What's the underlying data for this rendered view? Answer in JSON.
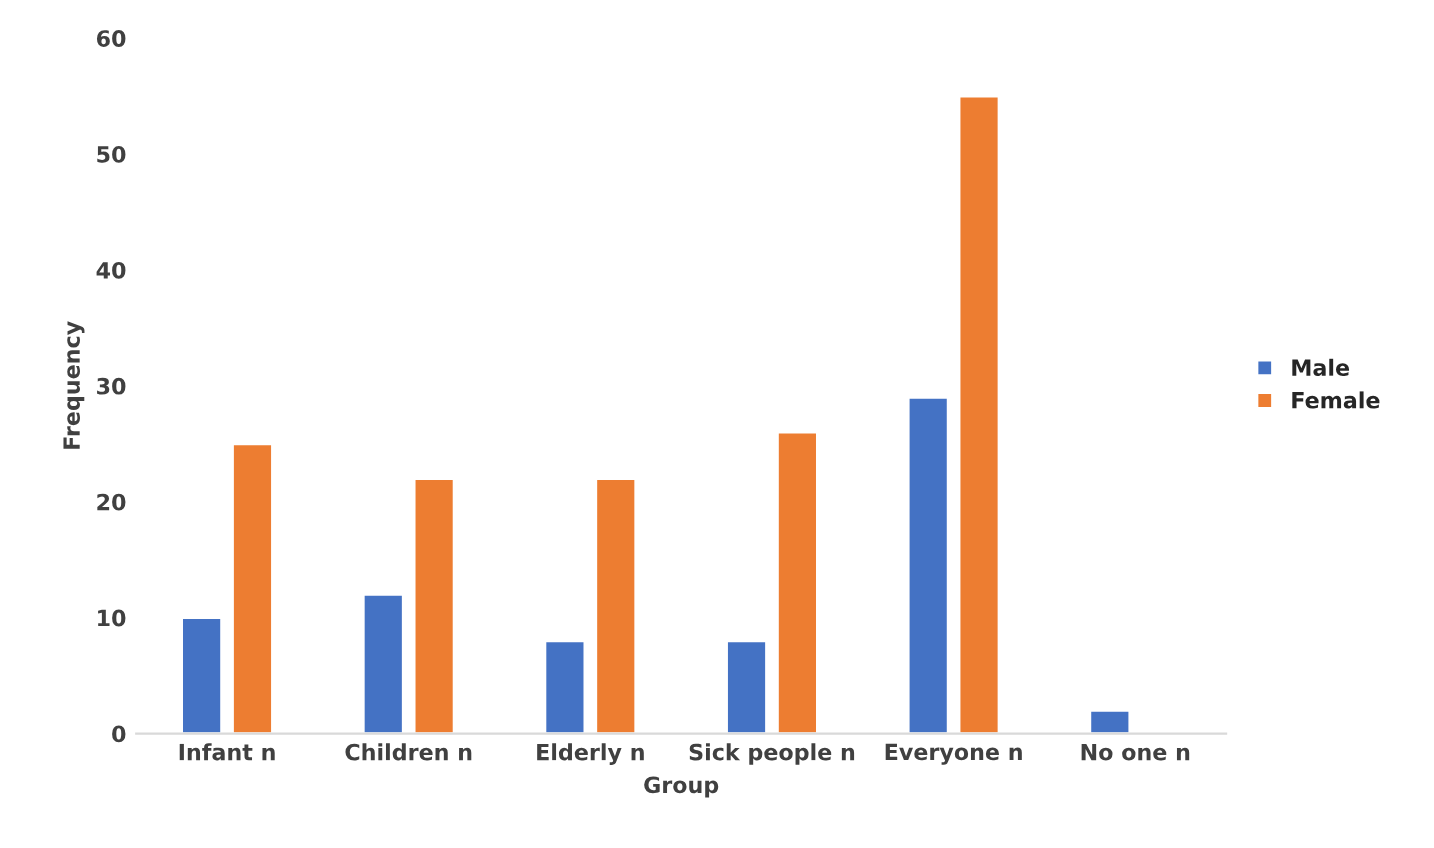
{
  "chart_data": {
    "type": "bar",
    "xlabel": "Group",
    "ylabel": "Frequency",
    "categories": [
      "Infant n",
      "Children n",
      "Elderly n",
      "Sick people n",
      "Everyone n",
      "No one n"
    ],
    "series": [
      {
        "name": "Male",
        "color": "#4472c4",
        "values": [
          10,
          12,
          8,
          8,
          29,
          2
        ]
      },
      {
        "name": "Female",
        "color": "#ed7d31",
        "values": [
          25,
          22,
          22,
          26,
          55,
          null
        ]
      }
    ],
    "ylim": [
      0,
      60
    ],
    "yticks": [
      0,
      10,
      20,
      30,
      40,
      50,
      60
    ],
    "grid": false,
    "legend": "right"
  }
}
